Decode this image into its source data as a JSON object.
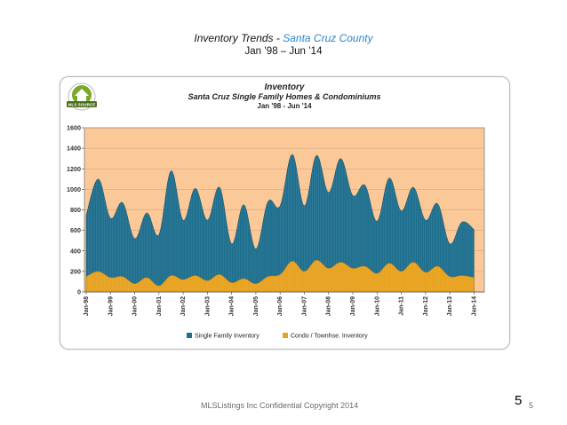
{
  "slide": {
    "title_prefix": "Inventory Trends - ",
    "title_accent": "Santa Cruz County",
    "subtitle": "Jan ’98 – Jun ’14",
    "footer": "MLSListings Inc Confidential Copyright 2014",
    "page_number_large": "5",
    "page_number_small": "5"
  },
  "colors": {
    "plot_background": "#fbc898",
    "single_family": "#1e6f8e",
    "condo": "#e7a21f",
    "accent_title": "#2c86c9"
  },
  "logo": {
    "text": "MLS SOURCE"
  },
  "chart_data": {
    "type": "area",
    "title": "Inventory",
    "subtitle": "Santa Cruz Single Family Homes &  Condominiums",
    "subtitle2": "Jan '98 - Jun '14",
    "ylim": [
      0,
      1600
    ],
    "yticks": [
      0,
      200,
      400,
      600,
      800,
      1000,
      1200,
      1400,
      1600
    ],
    "xticks": [
      "Jan-98",
      "Jan-99",
      "Jan-00",
      "Jan-01",
      "Jan-02",
      "Jan-03",
      "Jan-04",
      "Jan-05",
      "Jan-06",
      "Jan-07",
      "Jan-08",
      "Jan-09",
      "Jan-10",
      "Jan-11",
      "Jan-12",
      "Jan-13",
      "Jan-14"
    ],
    "grid": true,
    "legend_position": "bottom",
    "stacked": true,
    "months_per_point": 6,
    "series": [
      {
        "name": "Single Family Inventory",
        "values_total": [
          750,
          1100,
          720,
          870,
          520,
          770,
          560,
          1180,
          700,
          1010,
          700,
          1020,
          470,
          850,
          420,
          880,
          840,
          1340,
          840,
          1330,
          970,
          1300,
          940,
          1040,
          690,
          1110,
          790,
          1020,
          700,
          860,
          470,
          680,
          610
        ]
      },
      {
        "name": "Condo  /  Townhse. Inventory",
        "values": [
          150,
          200,
          140,
          150,
          80,
          140,
          60,
          160,
          120,
          160,
          110,
          170,
          90,
          130,
          80,
          150,
          170,
          300,
          200,
          310,
          230,
          290,
          230,
          250,
          180,
          280,
          200,
          290,
          190,
          250,
          150,
          160,
          140
        ]
      }
    ]
  }
}
